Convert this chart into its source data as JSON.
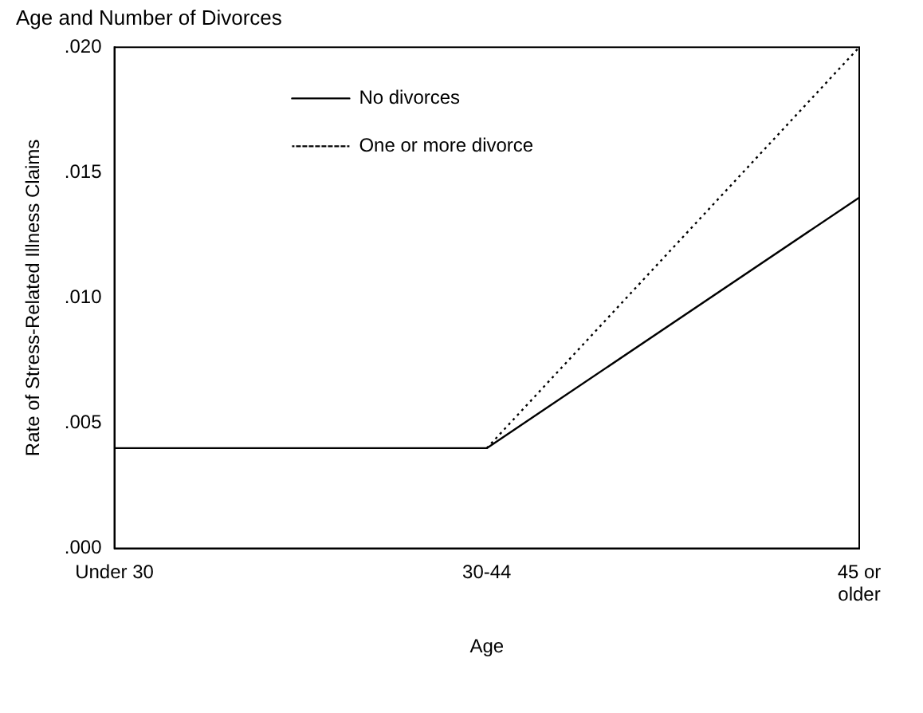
{
  "chart_data": {
    "type": "line",
    "title": "Age and Number of Divorces",
    "xlabel": "Age",
    "ylabel": "Rate of Stress-Related Illness Claims",
    "categories": [
      "Under 30",
      "30-44",
      "45 or older"
    ],
    "series": [
      {
        "name": "No divorces",
        "color": "#000000",
        "values": [
          0.004,
          0.004,
          0.014
        ],
        "line_style": "solid"
      },
      {
        "name": "One or more divorce",
        "color": "#000000",
        "values": [
          null,
          0.004,
          0.02
        ],
        "line_style": "dotted"
      }
    ],
    "ylim": [
      0,
      0.02
    ],
    "yticks": [
      {
        "value": 0,
        "label": ".000"
      },
      {
        "value": 0.005,
        "label": ".005"
      },
      {
        "value": 0.01,
        "label": ".010"
      },
      {
        "value": 0.015,
        "label": ".015"
      },
      {
        "value": 0.02,
        "label": ".020"
      }
    ],
    "grid": false,
    "legend": "top left",
    "marker": "none"
  }
}
